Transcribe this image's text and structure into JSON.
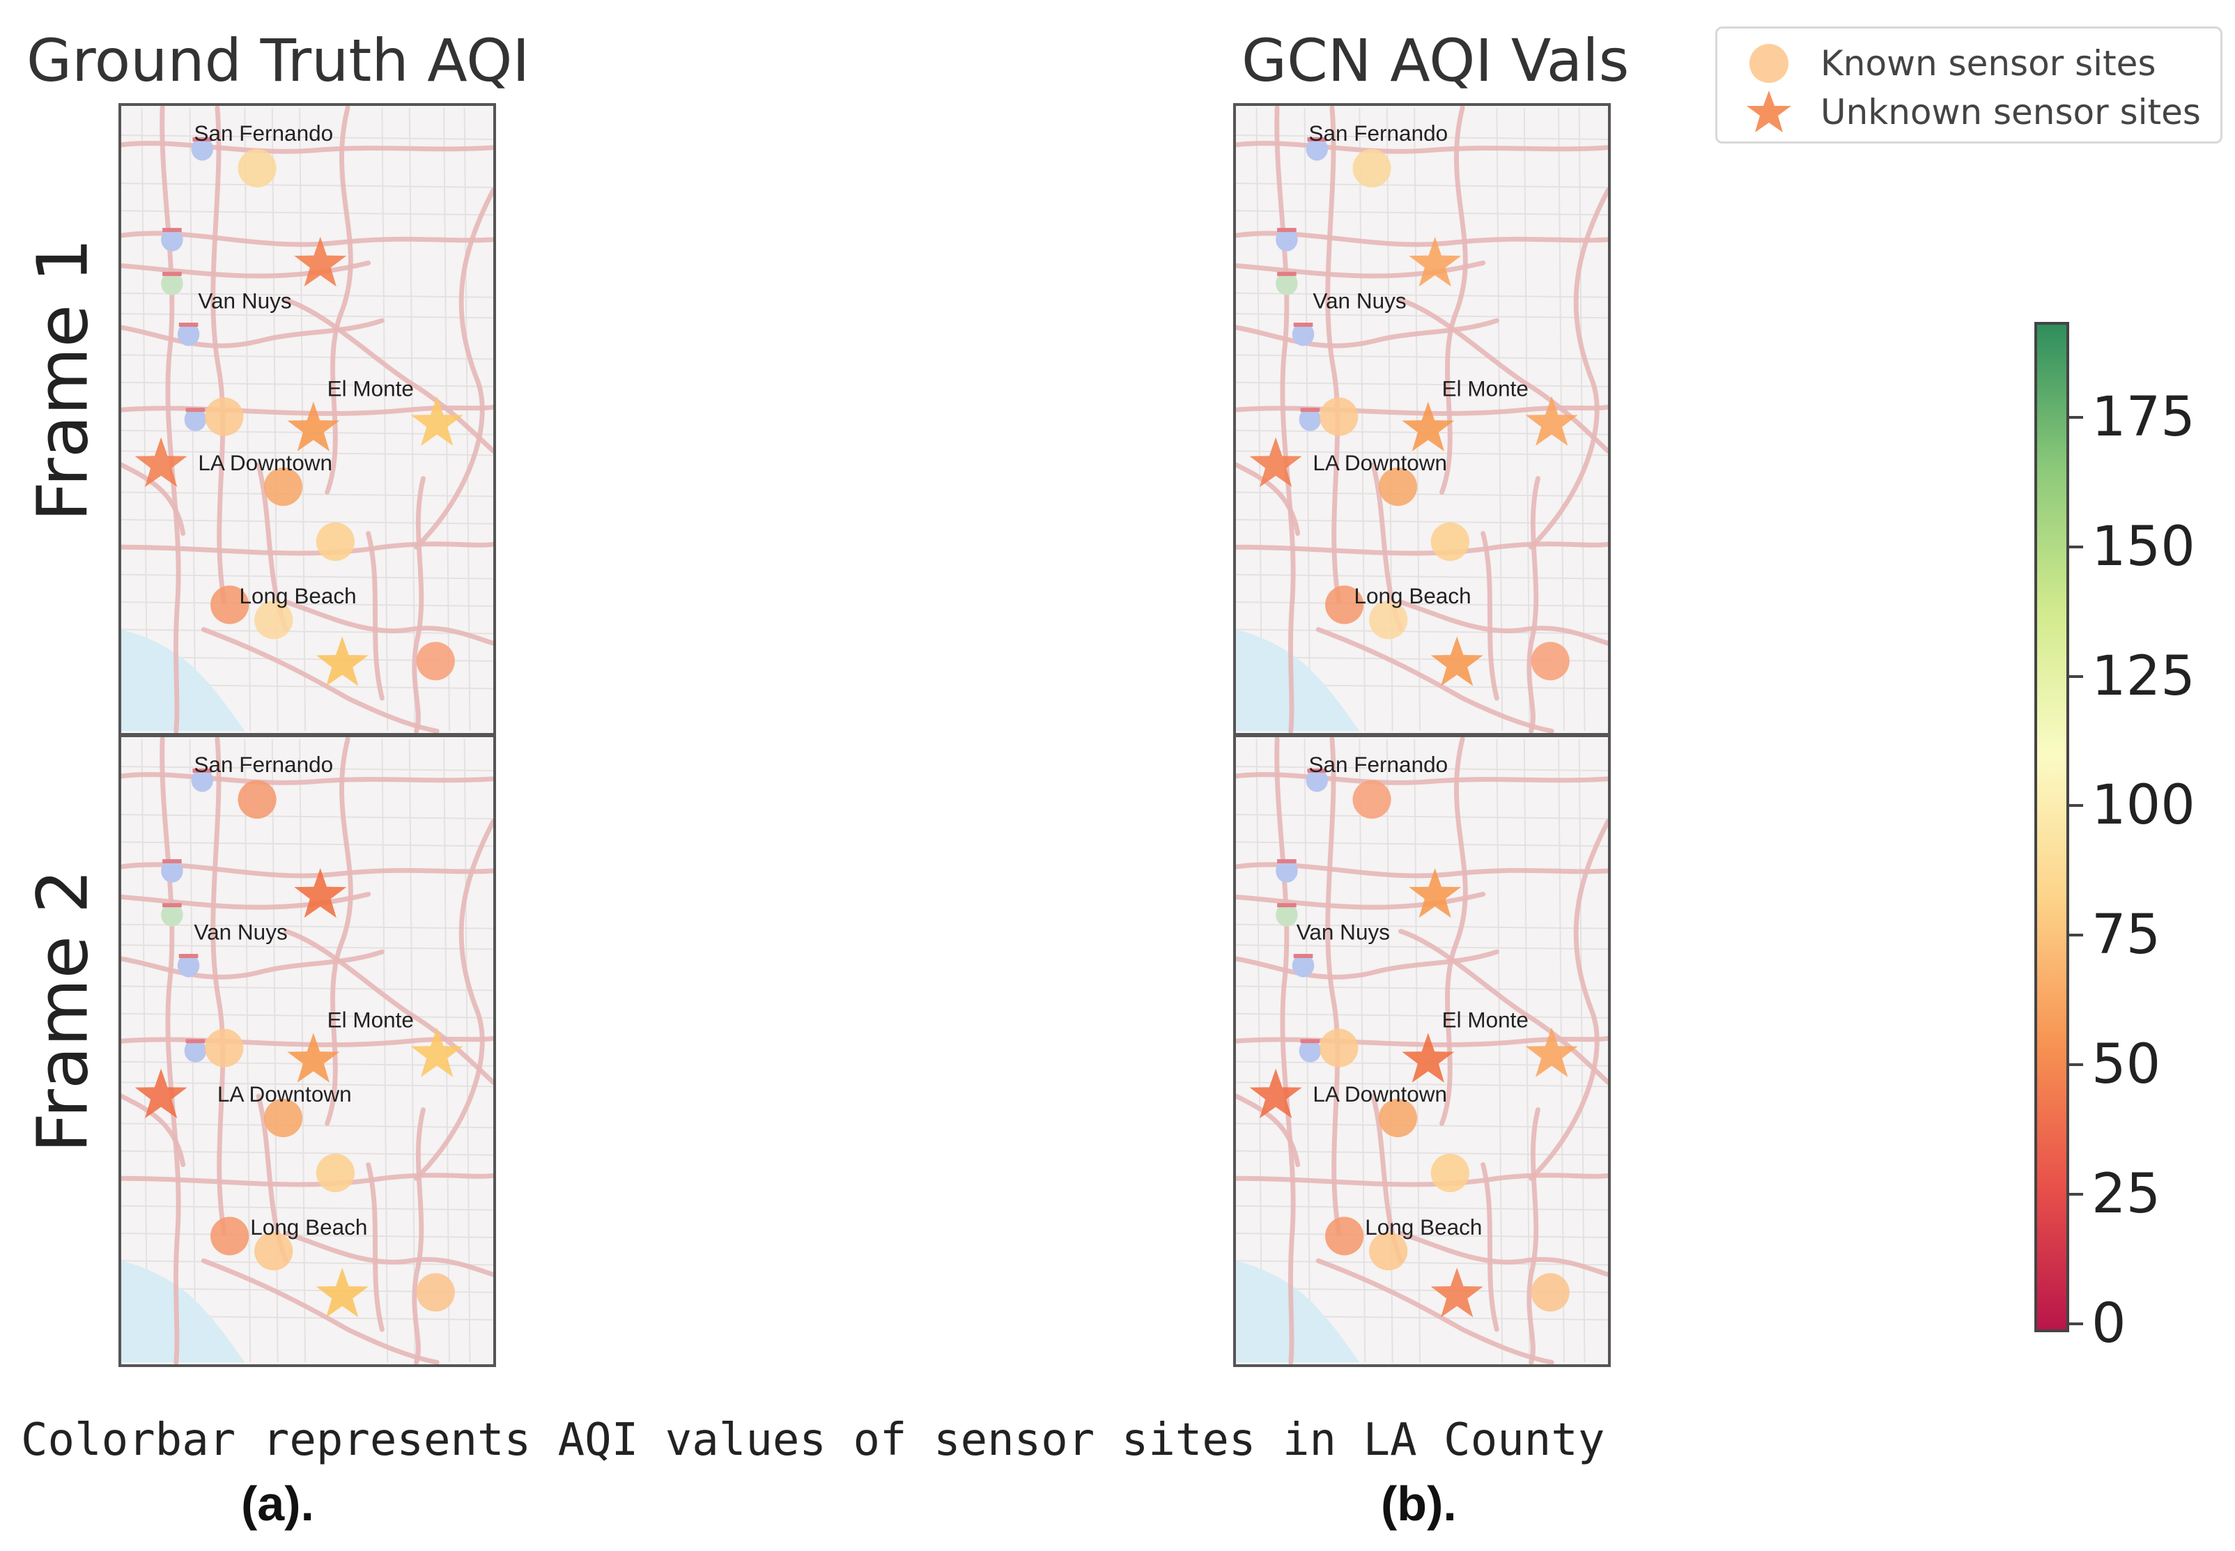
{
  "titles": {
    "left": "Ground Truth AQI",
    "right": "GCN AQI Vals"
  },
  "rows": [
    "Frame 1",
    "Frame 2"
  ],
  "legend": {
    "known": "Known sensor sites",
    "unknown": "Unknown sensor sites"
  },
  "place_names": {
    "san_fernando": "San Fernando",
    "van_nuys": "Van Nuys",
    "el_monte": "El Monte",
    "la_downtown": "LA Downtown",
    "long_beach": "Long Beach"
  },
  "colorbar": {
    "ticks": [
      "0",
      "25",
      "50",
      "75",
      "100",
      "125",
      "150",
      "175"
    ],
    "range": [
      0,
      195
    ],
    "colors": [
      "#b8164a",
      "#e8514a",
      "#f79453",
      "#fdd38a",
      "#fbfbc4",
      "#d2ea8e",
      "#8cc97a",
      "#2f8e5c"
    ]
  },
  "caption": "Colorbar represents AQI values of sensor sites in LA County",
  "sublabels": {
    "a": "(a).",
    "b": "(b)."
  },
  "colors": {
    "known_legend": "#fdc68a",
    "unknown_legend": "#f5864c",
    "water": "#d7ecf5",
    "road": "#e7b7b7"
  }
}
